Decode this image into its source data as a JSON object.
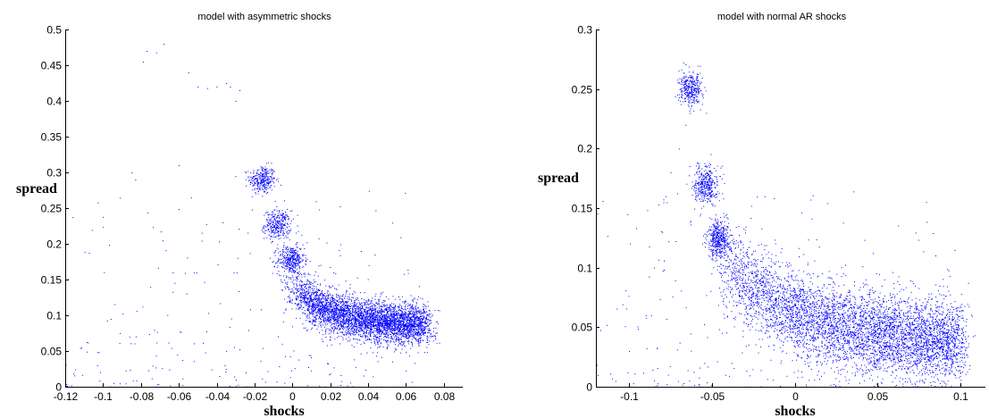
{
  "chart_data": [
    {
      "type": "scatter",
      "title": "model with asymmetric shocks",
      "xlabel": "shocks",
      "ylabel": "spread",
      "xlim": [
        -0.12,
        0.09
      ],
      "ylim": [
        0,
        0.5
      ],
      "xticks": [
        "-0.12",
        "-0.1",
        "-0.08",
        "-0.06",
        "-0.04",
        "-0.02",
        "0",
        "0.02",
        "0.04",
        "0.06",
        "0.08"
      ],
      "xtick_values": [
        -0.12,
        -0.1,
        -0.08,
        -0.06,
        -0.04,
        -0.02,
        0,
        0.02,
        0.04,
        0.06,
        0.08
      ],
      "yticks": [
        "0",
        "0.05",
        "0.1",
        "0.15",
        "0.2",
        "0.25",
        "0.3",
        "0.35",
        "0.4",
        "0.45",
        "0.5"
      ],
      "ytick_values": [
        0,
        0.05,
        0.1,
        0.15,
        0.2,
        0.25,
        0.3,
        0.35,
        0.4,
        0.45,
        0.5
      ],
      "grid": false,
      "color": "#0000ff",
      "clusters": [
        {
          "x": -0.016,
          "y": 0.29,
          "sx": 0.0035,
          "sy": 0.01,
          "n": 300
        },
        {
          "x": -0.008,
          "y": 0.227,
          "sx": 0.0035,
          "sy": 0.01,
          "n": 320
        },
        {
          "x": -0.001,
          "y": 0.178,
          "sx": 0.0035,
          "sy": 0.01,
          "n": 380
        }
      ],
      "curve": {
        "x_range": [
          0.0,
          0.07
        ],
        "y_start": 0.14,
        "y_end": 0.085,
        "n": 4200
      },
      "outliers": [
        {
          "x": -0.068,
          "y": 0.48
        },
        {
          "x": -0.077,
          "y": 0.47
        },
        {
          "x": -0.079,
          "y": 0.455
        },
        {
          "x": -0.072,
          "y": 0.468
        },
        {
          "x": -0.055,
          "y": 0.44
        },
        {
          "x": -0.05,
          "y": 0.42
        },
        {
          "x": -0.045,
          "y": 0.418
        },
        {
          "x": -0.04,
          "y": 0.42
        },
        {
          "x": -0.035,
          "y": 0.425
        },
        {
          "x": -0.033,
          "y": 0.42
        },
        {
          "x": -0.028,
          "y": 0.415
        },
        {
          "x": -0.03,
          "y": 0.4
        },
        {
          "x": -0.06,
          "y": 0.31
        },
        {
          "x": -0.085,
          "y": 0.3
        },
        {
          "x": -0.083,
          "y": 0.29
        }
      ]
    },
    {
      "type": "scatter",
      "title": "model with normal AR shocks",
      "xlabel": "shocks",
      "ylabel": "spread",
      "xlim": [
        -0.12,
        0.115
      ],
      "ylim": [
        0,
        0.3
      ],
      "xticks": [
        "-0.1",
        "-0.05",
        "0",
        "0.05",
        "0.1"
      ],
      "xtick_values": [
        -0.1,
        -0.05,
        0,
        0.05,
        0.1
      ],
      "yticks": [
        "0",
        "0.05",
        "0.1",
        "0.15",
        "0.2",
        "0.25",
        "0.3"
      ],
      "ytick_values": [
        0,
        0.05,
        0.1,
        0.15,
        0.2,
        0.25,
        0.3
      ],
      "grid": false,
      "color": "#0000ff",
      "clusters": [
        {
          "x": -0.063,
          "y": 0.25,
          "sx": 0.0035,
          "sy": 0.007,
          "n": 340
        },
        {
          "x": -0.054,
          "y": 0.17,
          "sx": 0.0035,
          "sy": 0.008,
          "n": 380
        },
        {
          "x": -0.046,
          "y": 0.124,
          "sx": 0.0035,
          "sy": 0.008,
          "n": 420
        }
      ],
      "curve": {
        "x_range": [
          -0.045,
          0.1
        ],
        "y_start": 0.11,
        "y_end": 0.035,
        "n": 5200
      },
      "outliers": [
        {
          "x": -0.07,
          "y": 0.2
        },
        {
          "x": -0.075,
          "y": 0.18
        },
        {
          "x": -0.08,
          "y": 0.13
        },
        {
          "x": -0.085,
          "y": 0.1
        },
        {
          "x": -0.09,
          "y": 0.06
        },
        {
          "x": -0.1,
          "y": 0.03
        },
        {
          "x": -0.078,
          "y": 0.16
        },
        {
          "x": -0.066,
          "y": 0.22
        }
      ]
    }
  ]
}
